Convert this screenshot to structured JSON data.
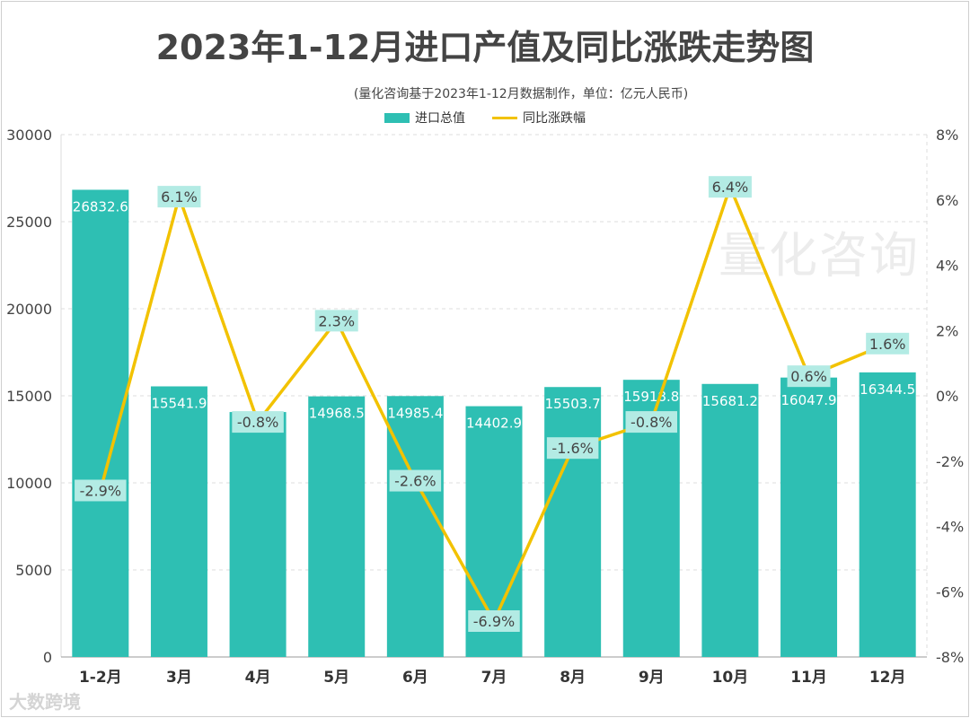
{
  "chart_data": {
    "type": "bar+line",
    "title": "2023年1-12月进口产值及同比涨跌走势图",
    "subtitle": "(量化咨询基于2023年1-12月数据制作，单位：亿元人民币)",
    "categories": [
      "1-2月",
      "3月",
      "4月",
      "5月",
      "6月",
      "7月",
      "8月",
      "9月",
      "10月",
      "11月",
      "12月"
    ],
    "series": [
      {
        "name": "进口总值",
        "type": "bar",
        "axis": "left",
        "color": "#2ebfb3",
        "values": [
          26832.6,
          15541.9,
          14068.0,
          14968.5,
          14985.4,
          14402.9,
          15503.7,
          15918.8,
          15681.2,
          16047.9,
          16344.5
        ],
        "labels": [
          "26832.6",
          "15541.9",
          "",
          "14968.5",
          "14985.4",
          "14402.9",
          "15503.7",
          "15918.8",
          "15681.2",
          "16047.9",
          "16344.5"
        ]
      },
      {
        "name": "同比涨跌幅",
        "type": "line",
        "axis": "right",
        "color": "#f2c200",
        "values": [
          -2.9,
          6.1,
          -0.8,
          2.3,
          -2.6,
          -6.9,
          -1.6,
          -0.8,
          6.4,
          0.6,
          1.6
        ],
        "labels": [
          "-2.9%",
          "6.1%",
          "-0.8%",
          "2.3%",
          "-2.6%",
          "-6.9%",
          "-1.6%",
          "-0.8%",
          "6.4%",
          "0.6%",
          "1.6%"
        ]
      }
    ],
    "y_left": {
      "range": [
        0,
        30000
      ],
      "ticks": [
        "0",
        "5000",
        "10000",
        "15000",
        "20000",
        "25000",
        "30000"
      ]
    },
    "y_right": {
      "range": [
        -8,
        8
      ],
      "ticks": [
        "-8%",
        "-6%",
        "-4%",
        "-2%",
        "0%",
        "2%",
        "4%",
        "6%",
        "8%"
      ]
    },
    "grid": true,
    "legend": "top-center",
    "label_box_color": "#b3ebe4"
  },
  "watermark": "量化咨询",
  "logo": "大数跨境"
}
